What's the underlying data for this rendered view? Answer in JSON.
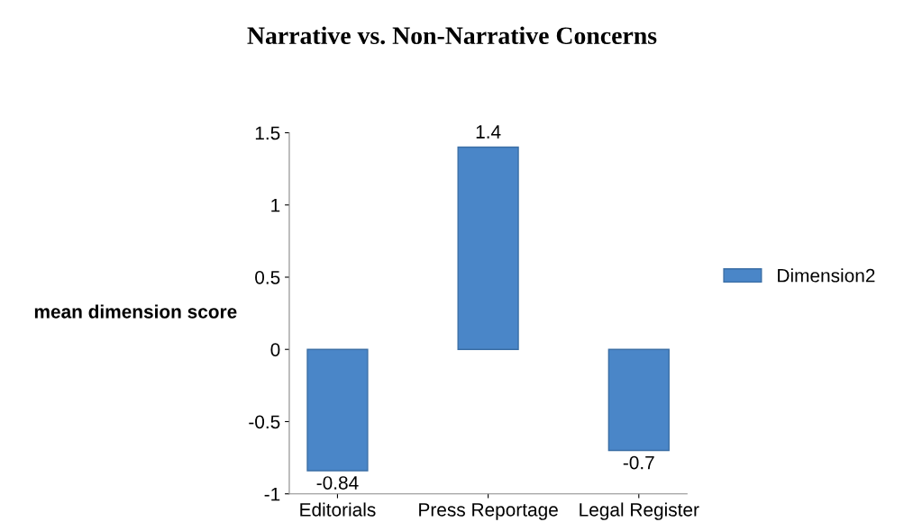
{
  "chart_data": {
    "type": "bar",
    "title": "Narrative vs. Non-Narrative Concerns",
    "ylabel": "mean dimension score",
    "categories": [
      "Editorials",
      "Press Reportage",
      "Legal Register"
    ],
    "series": [
      {
        "name": "Dimension2",
        "color": "#4a86c8",
        "values": [
          -0.84,
          1.4,
          -0.7
        ]
      }
    ],
    "ylim": [
      -1,
      1.5
    ],
    "yticks": [
      -1,
      -0.5,
      0,
      0.5,
      1,
      1.5
    ],
    "data_labels": true,
    "legend": "right",
    "grid": false
  }
}
